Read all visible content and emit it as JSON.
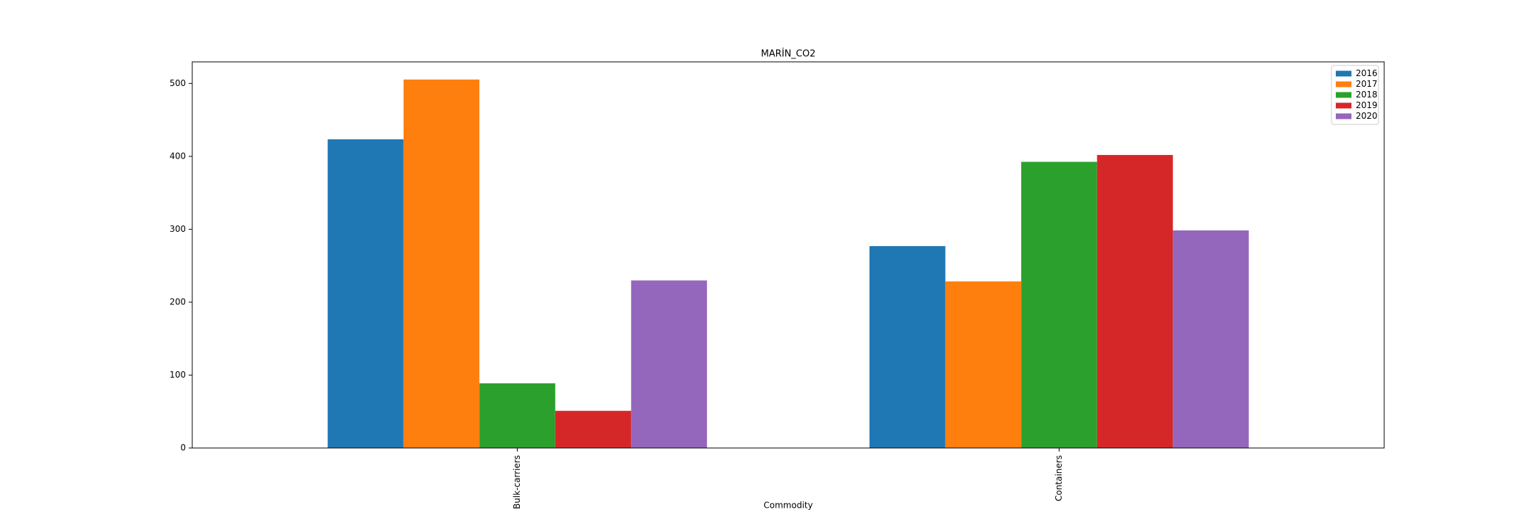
{
  "chart_data": {
    "type": "bar",
    "title": "MARİN_CO2",
    "x_label": "Commodity",
    "categories": [
      "Bulk-carriers",
      "Containers"
    ],
    "series": [
      {
        "name": "2016",
        "color": "#1f77b4",
        "values": [
          423.4,
          276.9
        ]
      },
      {
        "name": "2017",
        "color": "#ff7f0e",
        "values": [
          505.4,
          228.5
        ]
      },
      {
        "name": "2018",
        "color": "#2ca02c",
        "values": [
          88.7,
          392.5
        ]
      },
      {
        "name": "2019",
        "color": "#d62728",
        "values": [
          51,
          401.9
        ]
      },
      {
        "name": "2020",
        "color": "#9467bd",
        "values": [
          229.8,
          298.4
        ]
      }
    ],
    "ylim": [
      0,
      529.6
    ],
    "yticks": [
      0,
      100,
      200,
      300,
      400,
      500
    ],
    "legend": "upper right",
    "grid": false
  }
}
